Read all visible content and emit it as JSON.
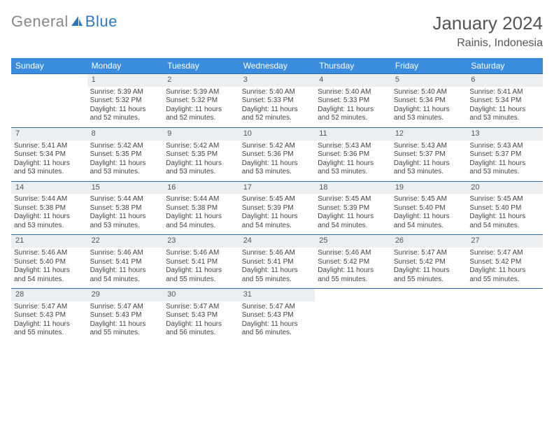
{
  "logo": {
    "part1": "General",
    "part2": "Blue"
  },
  "title": "January 2024",
  "location": "Rainis, Indonesia",
  "colors": {
    "header_bg": "#3a8dde",
    "header_text": "#ffffff",
    "daynum_bg": "#eceff1",
    "border": "#2f6daa",
    "text": "#444444",
    "accent": "#2f78bf"
  },
  "weekdays": [
    "Sunday",
    "Monday",
    "Tuesday",
    "Wednesday",
    "Thursday",
    "Friday",
    "Saturday"
  ],
  "weeks": [
    {
      "nums": [
        "",
        "1",
        "2",
        "3",
        "4",
        "5",
        "6"
      ],
      "cells": [
        {
          "empty": true
        },
        {
          "sunrise": "Sunrise: 5:39 AM",
          "sunset": "Sunset: 5:32 PM",
          "day1": "Daylight: 11 hours",
          "day2": "and 52 minutes."
        },
        {
          "sunrise": "Sunrise: 5:39 AM",
          "sunset": "Sunset: 5:32 PM",
          "day1": "Daylight: 11 hours",
          "day2": "and 52 minutes."
        },
        {
          "sunrise": "Sunrise: 5:40 AM",
          "sunset": "Sunset: 5:33 PM",
          "day1": "Daylight: 11 hours",
          "day2": "and 52 minutes."
        },
        {
          "sunrise": "Sunrise: 5:40 AM",
          "sunset": "Sunset: 5:33 PM",
          "day1": "Daylight: 11 hours",
          "day2": "and 52 minutes."
        },
        {
          "sunrise": "Sunrise: 5:40 AM",
          "sunset": "Sunset: 5:34 PM",
          "day1": "Daylight: 11 hours",
          "day2": "and 53 minutes."
        },
        {
          "sunrise": "Sunrise: 5:41 AM",
          "sunset": "Sunset: 5:34 PM",
          "day1": "Daylight: 11 hours",
          "day2": "and 53 minutes."
        }
      ]
    },
    {
      "nums": [
        "7",
        "8",
        "9",
        "10",
        "11",
        "12",
        "13"
      ],
      "cells": [
        {
          "sunrise": "Sunrise: 5:41 AM",
          "sunset": "Sunset: 5:34 PM",
          "day1": "Daylight: 11 hours",
          "day2": "and 53 minutes."
        },
        {
          "sunrise": "Sunrise: 5:42 AM",
          "sunset": "Sunset: 5:35 PM",
          "day1": "Daylight: 11 hours",
          "day2": "and 53 minutes."
        },
        {
          "sunrise": "Sunrise: 5:42 AM",
          "sunset": "Sunset: 5:35 PM",
          "day1": "Daylight: 11 hours",
          "day2": "and 53 minutes."
        },
        {
          "sunrise": "Sunrise: 5:42 AM",
          "sunset": "Sunset: 5:36 PM",
          "day1": "Daylight: 11 hours",
          "day2": "and 53 minutes."
        },
        {
          "sunrise": "Sunrise: 5:43 AM",
          "sunset": "Sunset: 5:36 PM",
          "day1": "Daylight: 11 hours",
          "day2": "and 53 minutes."
        },
        {
          "sunrise": "Sunrise: 5:43 AM",
          "sunset": "Sunset: 5:37 PM",
          "day1": "Daylight: 11 hours",
          "day2": "and 53 minutes."
        },
        {
          "sunrise": "Sunrise: 5:43 AM",
          "sunset": "Sunset: 5:37 PM",
          "day1": "Daylight: 11 hours",
          "day2": "and 53 minutes."
        }
      ]
    },
    {
      "nums": [
        "14",
        "15",
        "16",
        "17",
        "18",
        "19",
        "20"
      ],
      "cells": [
        {
          "sunrise": "Sunrise: 5:44 AM",
          "sunset": "Sunset: 5:38 PM",
          "day1": "Daylight: 11 hours",
          "day2": "and 53 minutes."
        },
        {
          "sunrise": "Sunrise: 5:44 AM",
          "sunset": "Sunset: 5:38 PM",
          "day1": "Daylight: 11 hours",
          "day2": "and 53 minutes."
        },
        {
          "sunrise": "Sunrise: 5:44 AM",
          "sunset": "Sunset: 5:38 PM",
          "day1": "Daylight: 11 hours",
          "day2": "and 54 minutes."
        },
        {
          "sunrise": "Sunrise: 5:45 AM",
          "sunset": "Sunset: 5:39 PM",
          "day1": "Daylight: 11 hours",
          "day2": "and 54 minutes."
        },
        {
          "sunrise": "Sunrise: 5:45 AM",
          "sunset": "Sunset: 5:39 PM",
          "day1": "Daylight: 11 hours",
          "day2": "and 54 minutes."
        },
        {
          "sunrise": "Sunrise: 5:45 AM",
          "sunset": "Sunset: 5:40 PM",
          "day1": "Daylight: 11 hours",
          "day2": "and 54 minutes."
        },
        {
          "sunrise": "Sunrise: 5:45 AM",
          "sunset": "Sunset: 5:40 PM",
          "day1": "Daylight: 11 hours",
          "day2": "and 54 minutes."
        }
      ]
    },
    {
      "nums": [
        "21",
        "22",
        "23",
        "24",
        "25",
        "26",
        "27"
      ],
      "cells": [
        {
          "sunrise": "Sunrise: 5:46 AM",
          "sunset": "Sunset: 5:40 PM",
          "day1": "Daylight: 11 hours",
          "day2": "and 54 minutes."
        },
        {
          "sunrise": "Sunrise: 5:46 AM",
          "sunset": "Sunset: 5:41 PM",
          "day1": "Daylight: 11 hours",
          "day2": "and 54 minutes."
        },
        {
          "sunrise": "Sunrise: 5:46 AM",
          "sunset": "Sunset: 5:41 PM",
          "day1": "Daylight: 11 hours",
          "day2": "and 55 minutes."
        },
        {
          "sunrise": "Sunrise: 5:46 AM",
          "sunset": "Sunset: 5:41 PM",
          "day1": "Daylight: 11 hours",
          "day2": "and 55 minutes."
        },
        {
          "sunrise": "Sunrise: 5:46 AM",
          "sunset": "Sunset: 5:42 PM",
          "day1": "Daylight: 11 hours",
          "day2": "and 55 minutes."
        },
        {
          "sunrise": "Sunrise: 5:47 AM",
          "sunset": "Sunset: 5:42 PM",
          "day1": "Daylight: 11 hours",
          "day2": "and 55 minutes."
        },
        {
          "sunrise": "Sunrise: 5:47 AM",
          "sunset": "Sunset: 5:42 PM",
          "day1": "Daylight: 11 hours",
          "day2": "and 55 minutes."
        }
      ]
    },
    {
      "nums": [
        "28",
        "29",
        "30",
        "31",
        "",
        "",
        ""
      ],
      "cells": [
        {
          "sunrise": "Sunrise: 5:47 AM",
          "sunset": "Sunset: 5:43 PM",
          "day1": "Daylight: 11 hours",
          "day2": "and 55 minutes."
        },
        {
          "sunrise": "Sunrise: 5:47 AM",
          "sunset": "Sunset: 5:43 PM",
          "day1": "Daylight: 11 hours",
          "day2": "and 55 minutes."
        },
        {
          "sunrise": "Sunrise: 5:47 AM",
          "sunset": "Sunset: 5:43 PM",
          "day1": "Daylight: 11 hours",
          "day2": "and 56 minutes."
        },
        {
          "sunrise": "Sunrise: 5:47 AM",
          "sunset": "Sunset: 5:43 PM",
          "day1": "Daylight: 11 hours",
          "day2": "and 56 minutes."
        },
        {
          "empty": true
        },
        {
          "empty": true
        },
        {
          "empty": true
        }
      ]
    }
  ]
}
